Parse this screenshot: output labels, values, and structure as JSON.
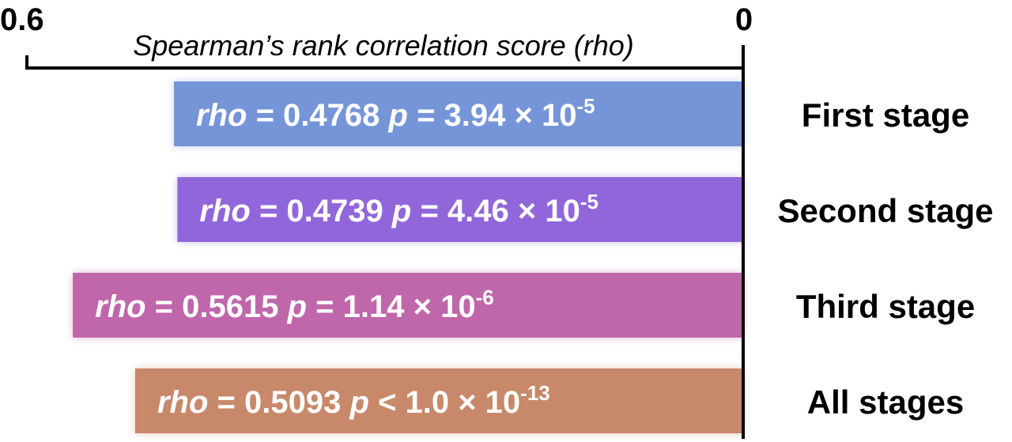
{
  "chart_data": {
    "type": "bar",
    "orientation": "horizontal",
    "xlabel": "Spearman’s rank correlation score (rho)",
    "xlim": [
      0.6,
      0
    ],
    "ticks": [
      "0.6",
      "0"
    ],
    "grid": false,
    "categories": [
      "First stage",
      "Second stage",
      "Third stage",
      "All stages"
    ],
    "values": [
      0.4768,
      0.4739,
      0.5615,
      0.5093
    ],
    "colors": [
      "#7595d8",
      "#9166da",
      "#c066aa",
      "#c8886a"
    ],
    "labels": [
      {
        "rho_name": "rho",
        "rho_eq": " = 0.4768 ",
        "p_name": "p",
        "p_op": " = ",
        "p_mantissa": "3.94 × 10",
        "p_exp": "-5"
      },
      {
        "rho_name": "rho",
        "rho_eq": " = 0.4739 ",
        "p_name": "p",
        "p_op": " = ",
        "p_mantissa": "4.46 × 10",
        "p_exp": "-5"
      },
      {
        "rho_name": "rho",
        "rho_eq": " = 0.5615 ",
        "p_name": "p",
        "p_op": " = ",
        "p_mantissa": "1.14 × 10",
        "p_exp": "-6"
      },
      {
        "rho_name": "rho",
        "rho_eq": " = 0.5093 ",
        "p_name": "p",
        "p_op": " < ",
        "p_mantissa": "1.0 × 10",
        "p_exp": "-13"
      }
    ]
  }
}
